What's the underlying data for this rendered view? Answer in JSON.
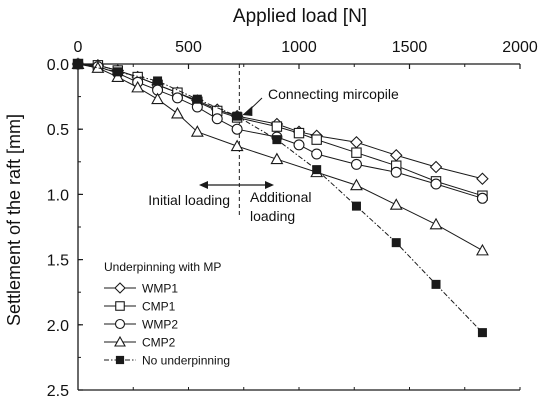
{
  "chart_data": {
    "type": "line",
    "xlabel": "Applied load [N]",
    "ylabel": "Settlement of the raft [mm]",
    "x_axis_position": "top",
    "y_inverted": true,
    "xlim": [
      0,
      2000
    ],
    "ylim": [
      0,
      2.5
    ],
    "x_ticks": [
      "0",
      "500",
      "1000",
      "1500",
      "2000"
    ],
    "y_ticks": [
      "0.0",
      "0.5",
      "1.0",
      "1.5",
      "2.0",
      "2.5"
    ],
    "grid": false,
    "legend": {
      "title": "Underpinning with MP",
      "placement": "bottom-left"
    },
    "series": [
      {
        "name": "WMP1",
        "marker": "diamond",
        "line": "solid",
        "points": [
          [
            0,
            0.0
          ],
          [
            90,
            0.01
          ],
          [
            180,
            0.05
          ],
          [
            270,
            0.1
          ],
          [
            360,
            0.16
          ],
          [
            450,
            0.22
          ],
          [
            540,
            0.28
          ],
          [
            630,
            0.35
          ],
          [
            720,
            0.4
          ],
          [
            900,
            0.46
          ],
          [
            1000,
            0.52
          ],
          [
            1080,
            0.55
          ],
          [
            1260,
            0.6
          ],
          [
            1440,
            0.7
          ],
          [
            1620,
            0.79
          ],
          [
            1830,
            0.88
          ]
        ]
      },
      {
        "name": "CMP1",
        "marker": "square-open",
        "line": "solid",
        "points": [
          [
            0,
            0.0
          ],
          [
            90,
            0.01
          ],
          [
            180,
            0.05
          ],
          [
            270,
            0.1
          ],
          [
            360,
            0.16
          ],
          [
            450,
            0.22
          ],
          [
            540,
            0.29
          ],
          [
            630,
            0.36
          ],
          [
            720,
            0.41
          ],
          [
            900,
            0.48
          ],
          [
            1000,
            0.53
          ],
          [
            1080,
            0.58
          ],
          [
            1260,
            0.68
          ],
          [
            1440,
            0.78
          ],
          [
            1620,
            0.9
          ],
          [
            1830,
            1.01
          ]
        ]
      },
      {
        "name": "WMP2",
        "marker": "circle",
        "line": "solid",
        "points": [
          [
            0,
            0.0
          ],
          [
            90,
            0.02
          ],
          [
            180,
            0.07
          ],
          [
            270,
            0.14
          ],
          [
            360,
            0.2
          ],
          [
            450,
            0.26
          ],
          [
            540,
            0.33
          ],
          [
            630,
            0.42
          ],
          [
            720,
            0.5
          ],
          [
            900,
            0.56
          ],
          [
            1000,
            0.62
          ],
          [
            1080,
            0.69
          ],
          [
            1260,
            0.77
          ],
          [
            1440,
            0.83
          ],
          [
            1620,
            0.92
          ],
          [
            1830,
            1.03
          ]
        ]
      },
      {
        "name": "CMP2",
        "marker": "triangle",
        "line": "solid",
        "points": [
          [
            0,
            0.0
          ],
          [
            90,
            0.03
          ],
          [
            180,
            0.1
          ],
          [
            270,
            0.18
          ],
          [
            360,
            0.27
          ],
          [
            450,
            0.38
          ],
          [
            540,
            0.52
          ],
          [
            720,
            0.63
          ],
          [
            900,
            0.73
          ],
          [
            1080,
            0.83
          ],
          [
            1260,
            0.93
          ],
          [
            1440,
            1.08
          ],
          [
            1620,
            1.23
          ],
          [
            1830,
            1.43
          ]
        ]
      },
      {
        "name": "No underpinning",
        "marker": "square-filled",
        "line": "dash-dot",
        "points": [
          [
            0,
            0.0
          ],
          [
            180,
            0.06
          ],
          [
            360,
            0.13
          ],
          [
            540,
            0.27
          ],
          [
            720,
            0.4
          ],
          [
            900,
            0.58
          ],
          [
            1080,
            0.81
          ],
          [
            1260,
            1.09
          ],
          [
            1440,
            1.37
          ],
          [
            1620,
            1.69
          ],
          [
            1830,
            2.06
          ]
        ]
      }
    ],
    "annotations": {
      "connecting": "Connecting mircopile",
      "initial": "Initial loading",
      "additional": "Additional",
      "additional2": "loading",
      "marker_load": 730
    },
    "colors": {
      "line": "#1a1a1a",
      "background": "#ffffff"
    }
  }
}
